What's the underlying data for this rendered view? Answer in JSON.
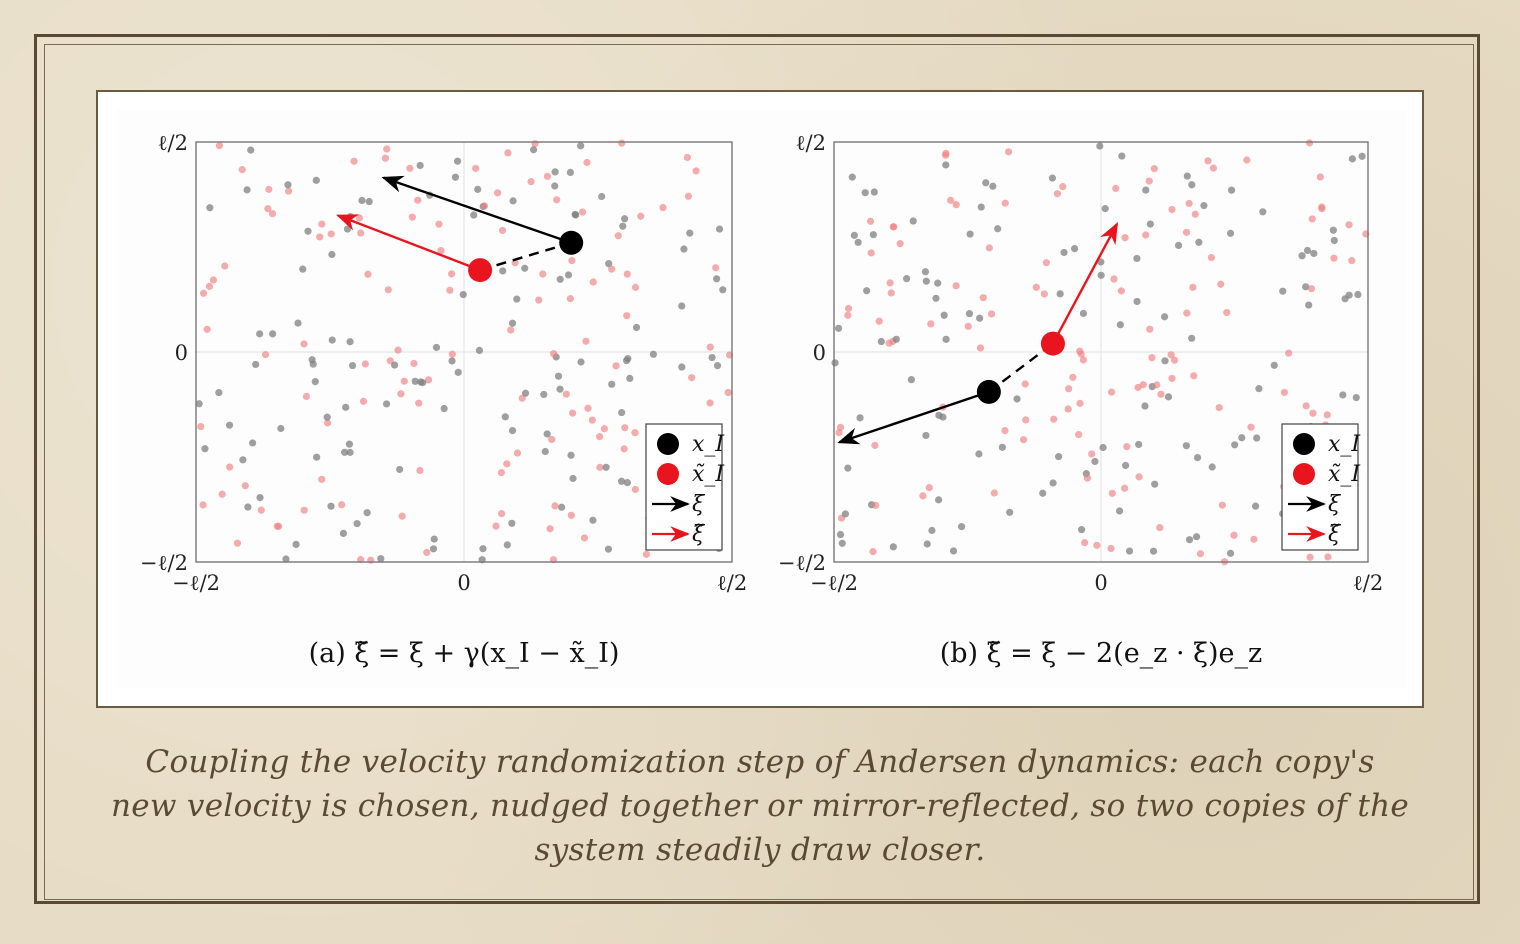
{
  "panels": [
    {
      "subcaption": "(a) ξ̃ = ξ + γ(x_I − x̃_I)",
      "x_ticks": [
        "−ℓ/2",
        "0",
        "ℓ/2"
      ],
      "y_ticks": [
        "ℓ/2",
        "0",
        "−ℓ/2"
      ],
      "legend": [
        "x_I",
        "x̃_I",
        "ξ",
        "ξ̃"
      ],
      "particle_x": [
        0.4,
        0.52
      ],
      "particle_x_tilde": [
        0.06,
        0.39
      ],
      "arrow_xi_end": [
        -0.3,
        0.83
      ],
      "arrow_xi_tilde_end": [
        -0.47,
        0.65
      ]
    },
    {
      "subcaption": "(b) ξ̃ = ξ − 2(e_z · ξ)e_z",
      "x_ticks": [
        "−ℓ/2",
        "0",
        "ℓ/2"
      ],
      "y_ticks": [
        "ℓ/2",
        "0",
        "−ℓ/2"
      ],
      "legend": [
        "x_I",
        "x̃_I",
        "ξ",
        "ξ̃"
      ],
      "particle_x": [
        -0.42,
        -0.19
      ],
      "particle_x_tilde": [
        -0.18,
        0.04
      ],
      "arrow_xi_end": [
        -0.98,
        -0.43
      ],
      "arrow_xi_tilde_end": [
        0.06,
        0.61
      ]
    }
  ],
  "caption": "Coupling the velocity randomization step of Andersen dynamics: each copy's new velocity is chosen, nudged together or mirror-reflected, so two copies of the system steadily draw closer.",
  "colors": {
    "background": "#e6dbc3",
    "frame": "#5a4a33",
    "particle_x": "#000000",
    "particle_x_tilde": "#e8141e",
    "scatter_gray": "#7f7f7f",
    "scatter_pink": "#f08080"
  }
}
